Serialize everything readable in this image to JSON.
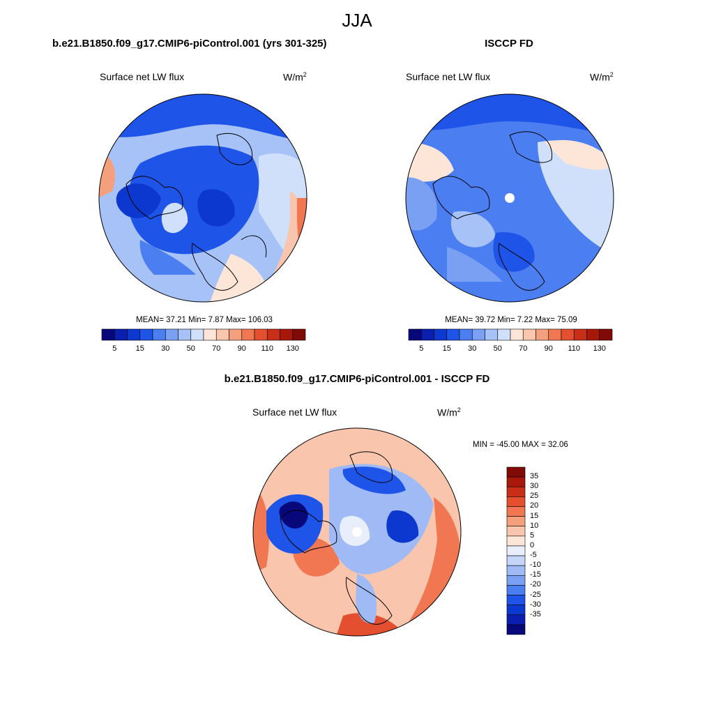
{
  "figure": {
    "season": "JJA"
  },
  "panels": [
    {
      "title": "b.e21.B1850.f09_g17.CMIP6-piControl.001 (yrs 301-325)",
      "left_label": "Surface net LW flux",
      "units_base": "W/m",
      "units_exp": "2",
      "stats": "MEAN=  37.21  Min=   7.87  Max= 106.03",
      "colorbar": {
        "orientation": "horizontal",
        "colors": [
          "#08087a",
          "#0a1fb0",
          "#0d38cf",
          "#1f54e8",
          "#4b7ef0",
          "#7aa0f4",
          "#a6c2f7",
          "#d0e0fa",
          "#fde6d8",
          "#f9c6ad",
          "#f5a07c",
          "#f07751",
          "#e4502f",
          "#c92e18",
          "#a8190b",
          "#800a05"
        ],
        "tick_labels": [
          "5",
          "15",
          "30",
          "50",
          "70",
          "90",
          "110",
          "130"
        ]
      }
    },
    {
      "title": "ISCCP FD",
      "left_label": "Surface net LW flux",
      "units_base": "W/m",
      "units_exp": "2",
      "stats": "MEAN=  39.72  Min=   7.22  Max=  75.09",
      "colorbar": {
        "orientation": "horizontal",
        "colors": [
          "#08087a",
          "#0a1fb0",
          "#0d38cf",
          "#1f54e8",
          "#4b7ef0",
          "#7aa0f4",
          "#a6c2f7",
          "#d0e0fa",
          "#fde6d8",
          "#f9c6ad",
          "#f5a07c",
          "#f07751",
          "#e4502f",
          "#c92e18",
          "#a8190b",
          "#800a05"
        ],
        "tick_labels": [
          "5",
          "15",
          "30",
          "50",
          "70",
          "90",
          "110",
          "130"
        ]
      }
    },
    {
      "title": "b.e21.B1850.f09_g17.CMIP6-piControl.001 - ISCCP FD",
      "left_label": "Surface net LW flux",
      "units_base": "W/m",
      "units_exp": "2",
      "stats": "MIN = -45.00 MAX =  32.06",
      "colorbar": {
        "orientation": "vertical",
        "colors": [
          "#800a05",
          "#a8190b",
          "#c92e18",
          "#e4502f",
          "#f07751",
          "#f5a07c",
          "#f9c6ad",
          "#fde6d8",
          "#e8eefa",
          "#c6d6f8",
          "#a0baf5",
          "#7aa0f4",
          "#4b7ef0",
          "#1f54e8",
          "#0d38cf",
          "#0a1fb0",
          "#08087a"
        ],
        "tick_labels": [
          "35",
          "30",
          "25",
          "20",
          "15",
          "10",
          "5",
          "0",
          "-5",
          "-10",
          "-15",
          "-20",
          "-25",
          "-30",
          "-35"
        ]
      }
    }
  ]
}
